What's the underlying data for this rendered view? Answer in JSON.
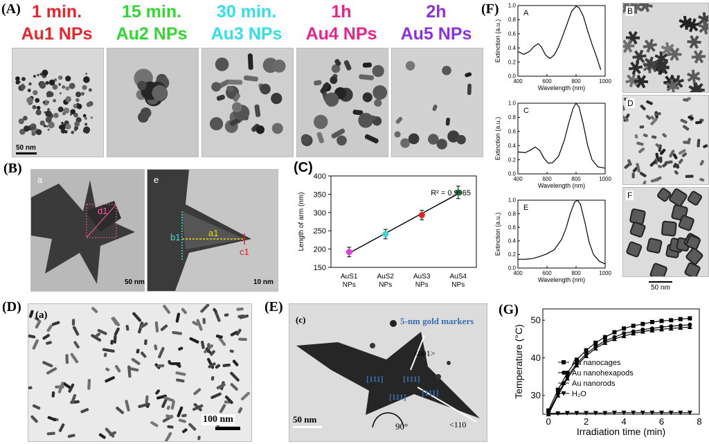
{
  "panelA": {
    "letter": "(A)",
    "times": [
      "1 min.",
      "15 min.",
      "30 min.",
      "1h",
      "2h"
    ],
    "labels": [
      "Au1 NPs",
      "Au2 NPs",
      "Au3 NPs",
      "Au4 NPs",
      "Au5 NPs"
    ],
    "colors": [
      "#e8262a",
      "#33d633",
      "#33e0e8",
      "#e8238c",
      "#8c30e8"
    ],
    "scalebar": "50 nm"
  },
  "panelB": {
    "letter": "(B)",
    "subA": "a",
    "subE": "e",
    "d1": "d1",
    "a1": "a1",
    "b1": "b1",
    "c1": "c1",
    "scaleLeft": "50 nm",
    "scaleRight": "10 nm"
  },
  "panelD": {
    "letter": "(D)",
    "sub": "(a)",
    "scalebar": "100 nm"
  },
  "panelE": {
    "letter": "(E)",
    "sub": "(c)",
    "markers": "5-nm gold markers",
    "scalebar": "50 nm",
    "dir001": "<001>",
    "dir110": "<110",
    "angle": "90°",
    "miller": [
      "[111]",
      "[111]",
      "[111]",
      "[111]"
    ]
  },
  "panelF": {
    "letter": "(F)",
    "subs": [
      "A",
      "C",
      "E"
    ],
    "temSubs": [
      "B",
      "D",
      "F"
    ],
    "xlabel": "Wavelength (nm)",
    "ylabel": "Extinction (a.u.)",
    "scalebar": "50 nm"
  },
  "panelG": {
    "letter": "(G)"
  },
  "chart_data": [
    {
      "id": "C",
      "type": "scatter",
      "title": "(C)",
      "categories": [
        "AuS1 NPs",
        "AuS2 NPs",
        "AuS3 NPs",
        "AuS4 NPs"
      ],
      "values": [
        192,
        241,
        293,
        355
      ],
      "errors": [
        13,
        13,
        13,
        17
      ],
      "point_colors": [
        "#e040e0",
        "#33d6d6",
        "#e82020",
        "#209040"
      ],
      "fit_line": true,
      "annotation": "R² = 0.9965",
      "ylabel": "Length of arm (nm)",
      "ylim": [
        150,
        400
      ],
      "yticks": [
        150,
        200,
        250,
        300,
        350,
        400
      ]
    },
    {
      "id": "F-A",
      "type": "line",
      "title": "A",
      "xlabel": "Wavelength (nm)",
      "ylabel": "Extinction (a.u.)",
      "xlim": [
        400,
        1000
      ],
      "ylim": [
        0,
        1.0
      ],
      "xticks": [
        400,
        600,
        800,
        1000
      ],
      "yticks": [
        0.0,
        0.2,
        0.4,
        0.6,
        0.8,
        1.0
      ],
      "x": [
        400,
        440,
        480,
        510,
        540,
        560,
        590,
        620,
        650,
        680,
        710,
        740,
        770,
        800,
        820,
        850,
        880,
        910,
        940,
        970
      ],
      "y": [
        0.35,
        0.31,
        0.35,
        0.42,
        0.46,
        0.42,
        0.3,
        0.25,
        0.3,
        0.42,
        0.58,
        0.75,
        0.92,
        0.99,
        0.97,
        0.85,
        0.64,
        0.45,
        0.28,
        0.09
      ]
    },
    {
      "id": "F-C",
      "type": "line",
      "title": "C",
      "xlabel": "Wavelength (nm)",
      "ylabel": "Extinction (a.u.)",
      "xlim": [
        400,
        1000
      ],
      "ylim": [
        0,
        1.0
      ],
      "xticks": [
        400,
        600,
        800,
        1000
      ],
      "yticks": [
        0.0,
        0.2,
        0.4,
        0.6,
        0.8,
        1.0
      ],
      "x": [
        400,
        450,
        490,
        520,
        550,
        580,
        610,
        640,
        680,
        720,
        750,
        780,
        800,
        820,
        850,
        880,
        910,
        950,
        1000
      ],
      "y": [
        0.31,
        0.3,
        0.34,
        0.38,
        0.33,
        0.22,
        0.15,
        0.16,
        0.25,
        0.48,
        0.72,
        0.93,
        1.0,
        0.95,
        0.7,
        0.4,
        0.2,
        0.1,
        0.08
      ]
    },
    {
      "id": "F-E",
      "type": "line",
      "title": "E",
      "xlabel": "Wavelength (nm)",
      "ylabel": "Extinction (a.u.)",
      "xlim": [
        400,
        1000
      ],
      "ylim": [
        0,
        1.0
      ],
      "xticks": [
        400,
        600,
        800,
        1000
      ],
      "yticks": [
        0.0,
        0.2,
        0.4,
        0.6,
        0.8,
        1.0
      ],
      "x": [
        400,
        450,
        500,
        550,
        600,
        650,
        700,
        730,
        760,
        790,
        810,
        830,
        860,
        890,
        920,
        960,
        1000
      ],
      "y": [
        0.13,
        0.13,
        0.14,
        0.17,
        0.21,
        0.27,
        0.42,
        0.58,
        0.8,
        0.97,
        1.0,
        0.94,
        0.68,
        0.38,
        0.2,
        0.1,
        0.06
      ]
    },
    {
      "id": "G",
      "type": "line",
      "xlabel": "Irradiation time (min)",
      "ylabel": "Temperature (°C)",
      "xlim": [
        -0.3,
        8
      ],
      "ylim": [
        25,
        53
      ],
      "xticks": [
        0,
        2,
        4,
        6,
        8
      ],
      "yticks": [
        30,
        40,
        50
      ],
      "legend": "center-right",
      "series": [
        {
          "name": "Au nanocages",
          "marker": "square",
          "x": [
            0,
            0.5,
            1,
            1.5,
            2,
            2.5,
            3,
            3.5,
            4,
            4.5,
            5,
            5.5,
            6,
            6.5,
            7,
            7.5
          ],
          "y": [
            26,
            31.5,
            36,
            39.5,
            42,
            44,
            45.5,
            46.8,
            47.8,
            48.5,
            49,
            49.5,
            49.8,
            50,
            50.3,
            50.5
          ]
        },
        {
          "name": "Au nanohexapods",
          "marker": "circle",
          "x": [
            0,
            0.5,
            1,
            1.5,
            2,
            2.5,
            3,
            3.5,
            4,
            4.5,
            5,
            5.5,
            6,
            6.5,
            7,
            7.5
          ],
          "y": [
            25.5,
            30.5,
            35,
            38.5,
            41,
            43,
            44.5,
            45.5,
            46.5,
            47,
            47.5,
            47.8,
            48.2,
            48.4,
            48.6,
            48.8
          ]
        },
        {
          "name": "Au nanorods",
          "marker": "triangle-up",
          "x": [
            0,
            0.5,
            1,
            1.5,
            2,
            2.5,
            3,
            3.5,
            4,
            4.5,
            5,
            5.5,
            6,
            6.5,
            7,
            7.5
          ],
          "y": [
            25,
            30,
            34.5,
            38,
            40.5,
            42.5,
            44,
            45,
            45.8,
            46.5,
            47,
            47.3,
            47.6,
            47.8,
            48,
            48.2
          ]
        },
        {
          "name": "H₂O",
          "marker": "triangle-down",
          "x": [
            0,
            0.5,
            1,
            1.5,
            2,
            2.5,
            3,
            3.5,
            4,
            4.5,
            5,
            5.5,
            6,
            6.5,
            7,
            7.5
          ],
          "y": [
            25.2,
            25.2,
            25.3,
            25.3,
            25.3,
            25.3,
            25.3,
            25.4,
            25.4,
            25.4,
            25.4,
            25.4,
            25.4,
            25.4,
            25.4,
            25.4
          ]
        }
      ]
    }
  ]
}
